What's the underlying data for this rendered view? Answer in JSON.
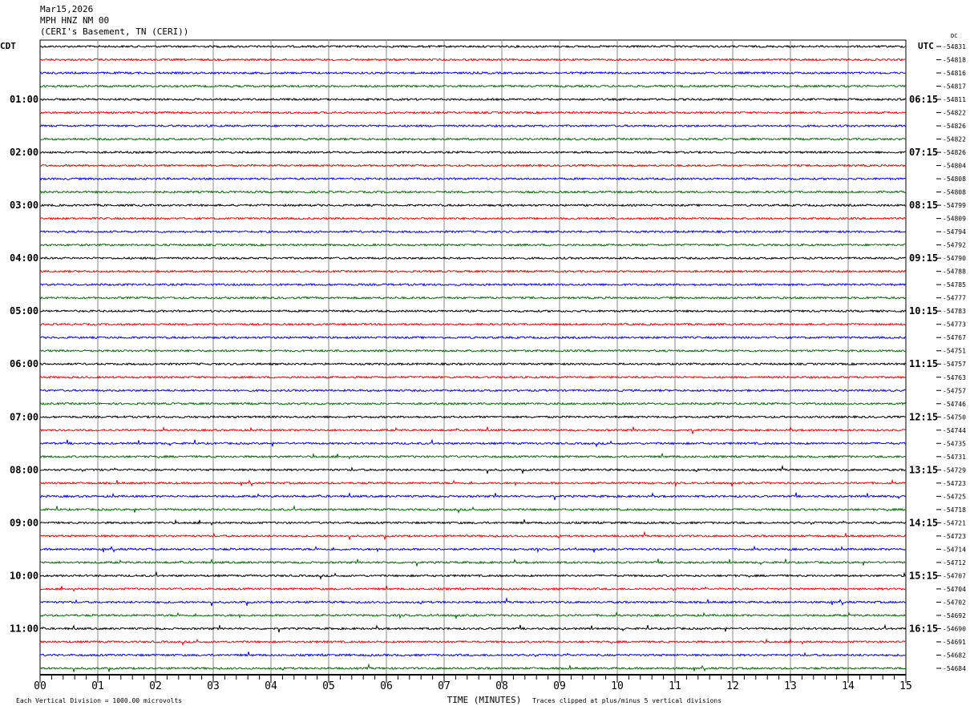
{
  "header": {
    "date": "Mar15,2026",
    "station": "MPH HNZ NM 00",
    "location": "(CERI's Basement, TN (CERI))"
  },
  "chart_data": {
    "type": "line",
    "subtype": "helicorder",
    "left_timezone": "CDT",
    "right_timezone": "UTC",
    "dc_label": "DC",
    "left_hour_labels": [
      "01:00",
      "02:00",
      "03:00",
      "04:00",
      "05:00",
      "06:00",
      "07:00",
      "08:00",
      "09:00",
      "10:00",
      "11:00"
    ],
    "right_hour_labels": [
      "06:15",
      "07:15",
      "08:15",
      "09:15",
      "10:15",
      "11:15",
      "12:15",
      "13:15",
      "14:15",
      "15:15",
      "16:15"
    ],
    "dc_offsets": [
      -54831,
      -54818,
      -54816,
      -54817,
      -54811,
      -54822,
      -54826,
      -54822,
      -54826,
      -54804,
      -54808,
      -54808,
      -54799,
      -54809,
      -54794,
      -54792,
      -54790,
      -54788,
      -54785,
      -54777,
      -54783,
      -54773,
      -54767,
      -54751,
      -54757,
      -54763,
      -54757,
      -54746,
      -54750,
      -54744,
      -54735,
      -54731,
      -54729,
      -54723,
      -54725,
      -54718,
      -54721,
      -54723,
      -54714,
      -54712,
      -54707,
      -54704,
      -54702,
      -54692,
      -54690,
      -54691,
      -54682,
      -54684
    ],
    "trace_colors": [
      "#000000",
      "#ff0000",
      "#0000ff",
      "#007000"
    ],
    "minutes_per_line": 15,
    "x_tick_labels": [
      "00",
      "01",
      "02",
      "03",
      "04",
      "05",
      "06",
      "07",
      "08",
      "09",
      "10",
      "11",
      "12",
      "13",
      "14",
      "15"
    ],
    "xlabel": "TIME (MINUTES)",
    "xlim": [
      0,
      15
    ],
    "grid": true,
    "scale_note": "Each Vertical Division = 1000.00 microvolts",
    "clip_note": "Traces clipped at plus/minus 5 vertical divisions"
  }
}
